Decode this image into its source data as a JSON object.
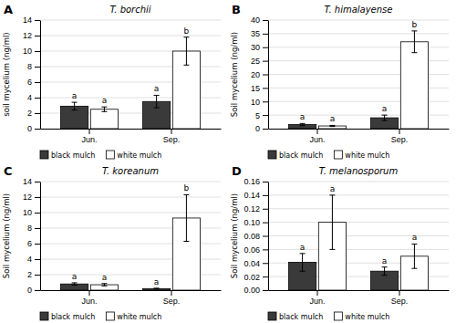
{
  "chart_data": [
    {
      "type": "bar",
      "title": "T. borchii",
      "annotations": [
        "A"
      ],
      "ylabel": "soil mycelium (ng/ml)",
      "categories": [
        "Jun.",
        "Sep."
      ],
      "series": [
        {
          "name": "black mulch",
          "color": "#3a3a3a",
          "values": [
            2.9,
            3.5
          ],
          "errors": [
            0.5,
            0.8
          ],
          "annotations": [
            "a",
            "a"
          ]
        },
        {
          "name": "white mulch",
          "color": "#ffffff",
          "values": [
            2.5,
            10.0
          ],
          "errors": [
            0.3,
            1.8
          ],
          "annotations": [
            "a",
            "b"
          ]
        }
      ],
      "ylim": [
        0,
        14
      ],
      "yticks": [
        0,
        2,
        4,
        6,
        8,
        10,
        12,
        14
      ],
      "grid": true,
      "legend": "bottom"
    },
    {
      "type": "bar",
      "title": "T. himalayense",
      "annotations": [
        "B"
      ],
      "ylabel": "Soil mycelium (ng/ml)",
      "categories": [
        "Jun.",
        "Sep."
      ],
      "series": [
        {
          "name": "black mulch",
          "color": "#3a3a3a",
          "values": [
            1.5,
            4.0
          ],
          "errors": [
            0.4,
            1.0
          ],
          "annotations": [
            "a",
            "a"
          ]
        },
        {
          "name": "white mulch",
          "color": "#ffffff",
          "values": [
            1.0,
            32.0
          ],
          "errors": [
            0.2,
            4.0
          ],
          "annotations": [
            "a",
            "b"
          ]
        }
      ],
      "ylim": [
        0,
        40
      ],
      "yticks": [
        0,
        5,
        10,
        15,
        20,
        25,
        30,
        35,
        40
      ],
      "grid": true,
      "legend": "bottom"
    },
    {
      "type": "bar",
      "title": "T. koreanum",
      "annotations": [
        "C"
      ],
      "ylabel": "Soil mycelium (ng/ml)",
      "categories": [
        "Jun.",
        "Sep."
      ],
      "series": [
        {
          "name": "black mulch",
          "color": "#3a3a3a",
          "values": [
            0.8,
            0.2
          ],
          "errors": [
            0.15,
            0.05
          ],
          "annotations": [
            "a",
            "a"
          ]
        },
        {
          "name": "white mulch",
          "color": "#ffffff",
          "values": [
            0.7,
            9.3
          ],
          "errors": [
            0.15,
            3.0
          ],
          "annotations": [
            "a",
            "b"
          ]
        }
      ],
      "ylim": [
        0,
        14
      ],
      "yticks": [
        0,
        2,
        4,
        6,
        8,
        10,
        12,
        14
      ],
      "grid": true,
      "legend": "bottom"
    },
    {
      "type": "bar",
      "title": "T. melanosporum",
      "annotations": [
        "D"
      ],
      "ylabel": "Soil mycelium (ng/ml)",
      "categories": [
        "Jun.",
        "Sep."
      ],
      "series": [
        {
          "name": "black mulch",
          "color": "#3a3a3a",
          "values": [
            0.041,
            0.028
          ],
          "errors": [
            0.013,
            0.006
          ],
          "annotations": [
            "a",
            "a"
          ]
        },
        {
          "name": "white mulch",
          "color": "#ffffff",
          "values": [
            0.1,
            0.05
          ],
          "errors": [
            0.04,
            0.018
          ],
          "annotations": [
            "a",
            "a"
          ]
        }
      ],
      "ylim": [
        0,
        0.16
      ],
      "yticks": [
        {
          "value": 0.0,
          "label": "0.00"
        },
        {
          "value": 0.02,
          "label": "0.02"
        },
        {
          "value": 0.04,
          "label": "0.04"
        },
        {
          "value": 0.06,
          "label": "0.06"
        },
        {
          "value": 0.08,
          "label": "0.08"
        },
        {
          "value": 0.1,
          "label": "0.10"
        },
        {
          "value": 0.12,
          "label": "0.12"
        },
        {
          "value": 0.14,
          "label": "0.14"
        },
        {
          "value": 0.16,
          "label": "0.16"
        }
      ],
      "grid": true,
      "legend": "bottom"
    }
  ]
}
